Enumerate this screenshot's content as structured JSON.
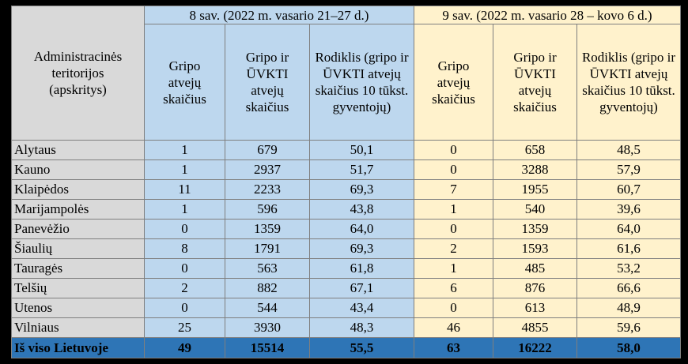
{
  "header": {
    "region_col": "Administracinės teritorijos (apskritys)",
    "period_1": "8 sav. (2022 m. vasario 21–27 d.)",
    "period_2": "9 sav. (2022 m. vasario 28 – kovo 6 d.)",
    "col_flu": "Gripo atvejų skaičius",
    "col_flu_ari": "Gripo ir ŪVKTI atvejų skaičius",
    "col_rate": "Rodiklis (gripo ir ŪVKTI atvejų skaičius 10 tūkst. gyventojų)"
  },
  "rows": [
    {
      "name": "Alytaus",
      "w8_flu": "1",
      "w8_ari": "679",
      "w8_rate": "50,1",
      "w9_flu": "0",
      "w9_ari": "658",
      "w9_rate": "48,5"
    },
    {
      "name": "Kauno",
      "w8_flu": "1",
      "w8_ari": "2937",
      "w8_rate": "51,7",
      "w9_flu": "0",
      "w9_ari": "3288",
      "w9_rate": "57,9"
    },
    {
      "name": "Klaipėdos",
      "w8_flu": "11",
      "w8_ari": "2233",
      "w8_rate": "69,3",
      "w9_flu": "7",
      "w9_ari": "1955",
      "w9_rate": "60,7"
    },
    {
      "name": "Marijampolės",
      "w8_flu": "1",
      "w8_ari": "596",
      "w8_rate": "43,8",
      "w9_flu": "1",
      "w9_ari": "540",
      "w9_rate": "39,6"
    },
    {
      "name": "Panevėžio",
      "w8_flu": "0",
      "w8_ari": "1359",
      "w8_rate": "64,0",
      "w9_flu": "0",
      "w9_ari": "1359",
      "w9_rate": "64,0"
    },
    {
      "name": "Šiaulių",
      "w8_flu": "8",
      "w8_ari": "1791",
      "w8_rate": "69,3",
      "w9_flu": "2",
      "w9_ari": "1593",
      "w9_rate": "61,6"
    },
    {
      "name": "Tauragės",
      "w8_flu": "0",
      "w8_ari": "563",
      "w8_rate": "61,8",
      "w9_flu": "1",
      "w9_ari": "485",
      "w9_rate": "53,2"
    },
    {
      "name": "Telšių",
      "w8_flu": "2",
      "w8_ari": "882",
      "w8_rate": "67,1",
      "w9_flu": "6",
      "w9_ari": "876",
      "w9_rate": "66,6"
    },
    {
      "name": "Utenos",
      "w8_flu": "0",
      "w8_ari": "544",
      "w8_rate": "43,4",
      "w9_flu": "0",
      "w9_ari": "613",
      "w9_rate": "48,9"
    },
    {
      "name": "Vilniaus",
      "w8_flu": "25",
      "w8_ari": "3930",
      "w8_rate": "48,3",
      "w9_flu": "46",
      "w9_ari": "4855",
      "w9_rate": "59,6"
    }
  ],
  "total": {
    "name": "Iš viso Lietuvoje",
    "w8_flu": "49",
    "w8_ari": "15514",
    "w8_rate": "55,5",
    "w9_flu": "63",
    "w9_ari": "16222",
    "w9_rate": "58,0"
  },
  "colors": {
    "gray": "#d9d9d9",
    "blue": "#bdd7ee",
    "yellow": "#fff2cc",
    "total": "#2e75b6"
  }
}
